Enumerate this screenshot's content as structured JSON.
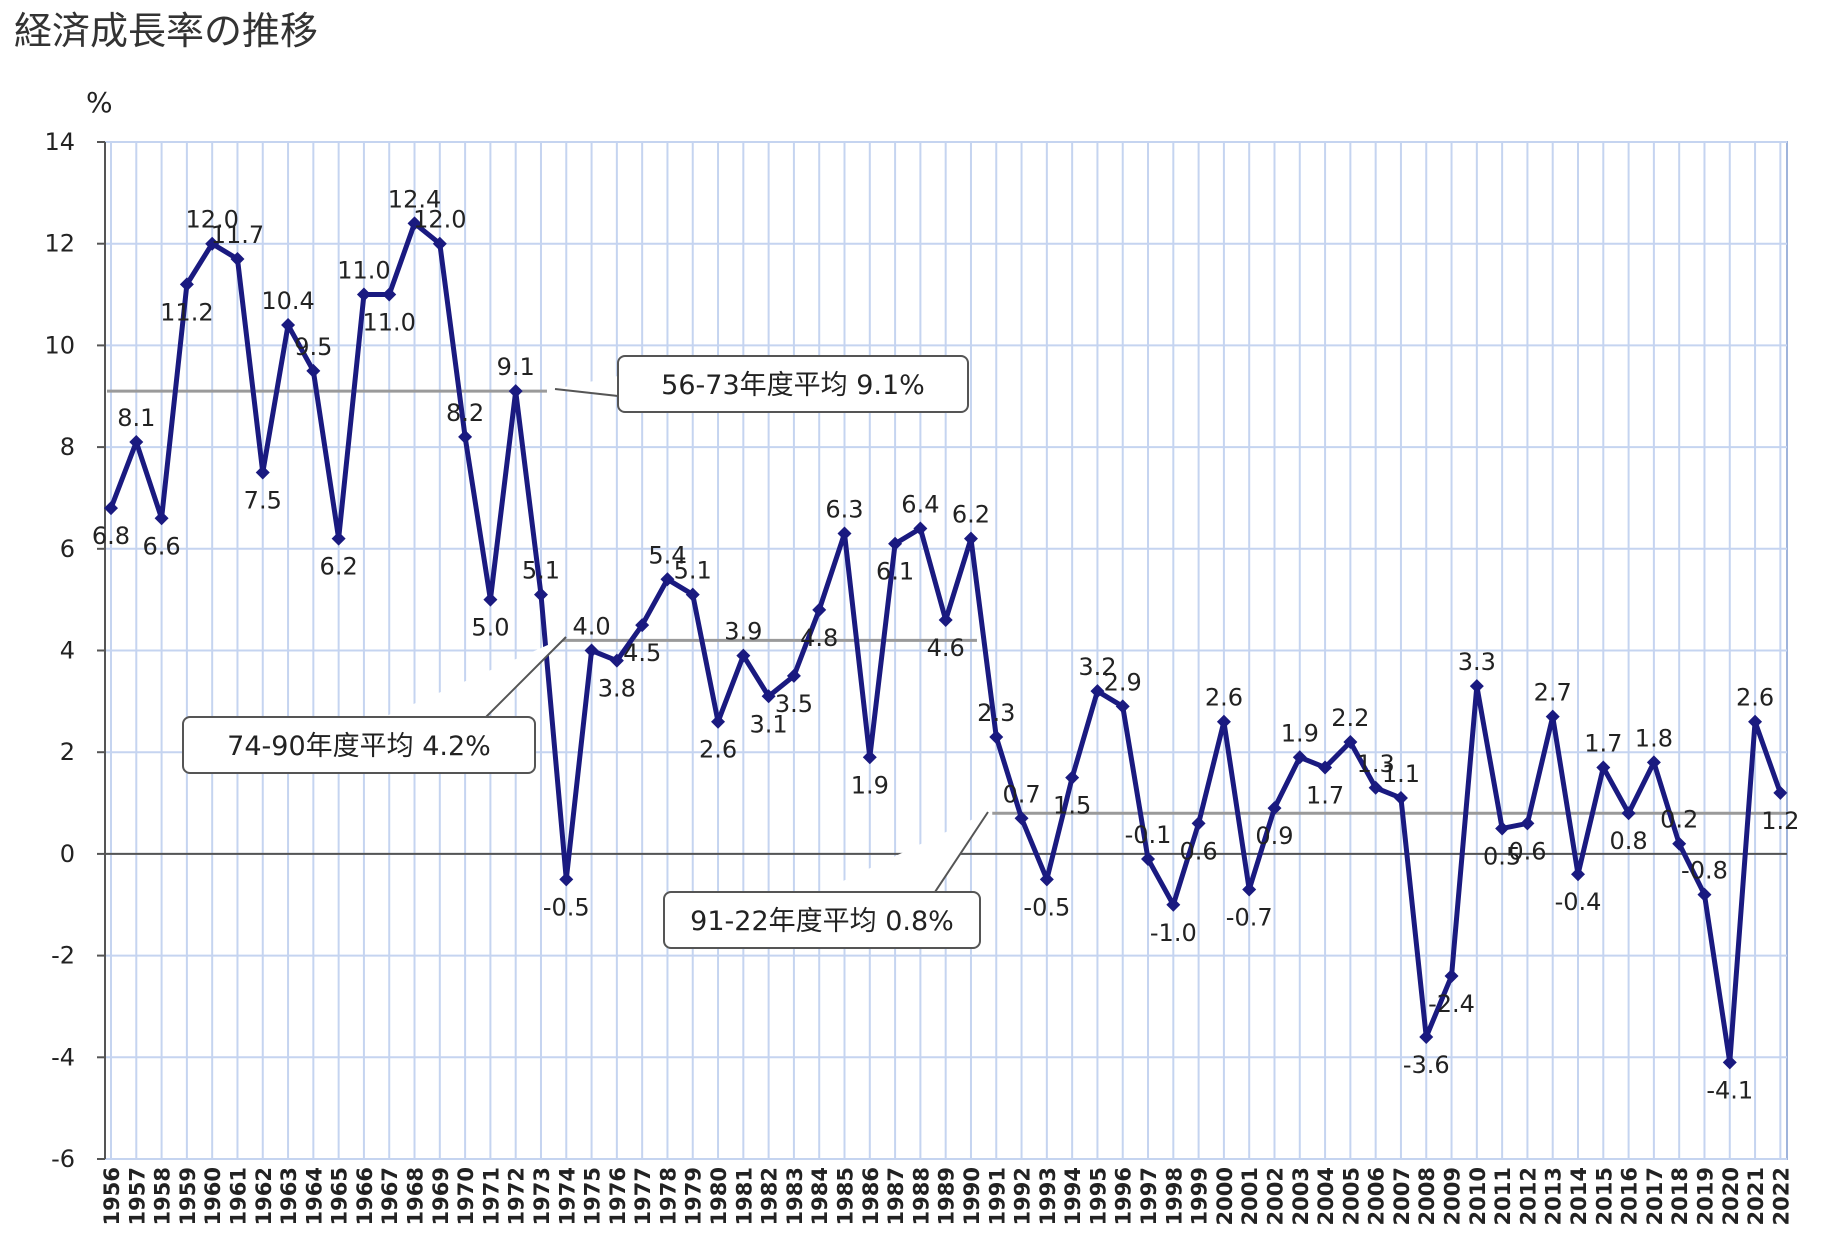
{
  "chart_data": {
    "type": "line",
    "title": "経済成長率の推移",
    "ylabel": "%",
    "xlabel": "",
    "ylim": [
      -6,
      14
    ],
    "yticks": [
      14,
      12,
      10,
      8,
      6,
      4,
      2,
      0,
      -2,
      -4,
      -6
    ],
    "grid": true,
    "colors": {
      "series": "#1a1a80",
      "grid": "#c5d4f0",
      "avg": "#9a9a9a",
      "zero": "#555555"
    },
    "x": [
      "1956",
      "1957",
      "1958",
      "1959",
      "1960",
      "1961",
      "1962",
      "1963",
      "1964",
      "1965",
      "1966",
      "1967",
      "1968",
      "1969",
      "1970",
      "1971",
      "1972",
      "1973",
      "1974",
      "1975",
      "1976",
      "1977",
      "1978",
      "1979",
      "1980",
      "1981",
      "1982",
      "1983",
      "1984",
      "1985",
      "1986",
      "1987",
      "1988",
      "1989",
      "1990",
      "1991",
      "1992",
      "1993",
      "1994",
      "1995",
      "1996",
      "1997",
      "1998",
      "1999",
      "2000",
      "2001",
      "2002",
      "2003",
      "2004",
      "2005",
      "2006",
      "2007",
      "2008",
      "2009",
      "2010",
      "2011",
      "2012",
      "2013",
      "2014",
      "2015",
      "2016",
      "2017",
      "2018",
      "2019",
      "2020",
      "2021",
      "2022"
    ],
    "series": [
      {
        "values": [
          6.8,
          8.1,
          6.6,
          11.2,
          12.0,
          11.7,
          7.5,
          10.4,
          9.5,
          6.2,
          11.0,
          11.0,
          12.4,
          12.0,
          8.2,
          5.0,
          9.1,
          5.1,
          -0.5,
          4.0,
          3.8,
          4.5,
          5.4,
          5.1,
          2.6,
          3.9,
          3.1,
          3.5,
          4.8,
          6.3,
          1.9,
          6.1,
          6.4,
          4.6,
          6.2,
          2.3,
          0.7,
          -0.5,
          1.5,
          3.2,
          2.9,
          -0.1,
          -1.0,
          0.6,
          2.6,
          -0.7,
          0.9,
          1.9,
          1.7,
          2.2,
          1.3,
          1.1,
          -3.6,
          -2.4,
          3.3,
          0.5,
          0.6,
          2.7,
          -0.4,
          1.7,
          0.8,
          1.8,
          0.2,
          -0.8,
          -4.1,
          2.6,
          1.2
        ],
        "labels": [
          "6.8",
          "8.1",
          "6.6",
          "11.2",
          "12.0",
          "11.7",
          "7.5",
          "10.4",
          "9.5",
          "6.2",
          "11.0",
          "11.0",
          "12.4",
          "12.0",
          "8.2",
          "5.0",
          "9.1",
          "5.1",
          "-0.5",
          "4.0",
          "3.8",
          "4.5",
          "5.4",
          "5.1",
          "2.6",
          "3.9",
          "3.1",
          "3.5",
          "4.8",
          "6.3",
          "1.9",
          "6.1",
          "6.4",
          "4.6",
          "6.2",
          "2.3",
          "0.7",
          "-0.5",
          "1.5",
          "3.2",
          "2.9",
          "-0.1",
          "-1.0",
          "0.6",
          "2.6",
          "-0.7",
          "0.9",
          "1.9",
          "1.7",
          "2.2",
          "1.3",
          "1.1",
          "-3.6",
          "-2.4",
          "3.3",
          "0.5",
          "0.6",
          "2.7",
          "-0.4",
          "1.7",
          "0.8",
          "1.8",
          "0.2",
          "-0.8",
          "-4.1",
          "2.6",
          "1.2"
        ]
      }
    ],
    "averages": [
      {
        "label": "56-73年度平均 9.1%",
        "from": "1956",
        "to": "1973",
        "value": 9.1
      },
      {
        "label": "74-90年度平均 4.2%",
        "from": "1974",
        "to": "1990",
        "value": 4.2
      },
      {
        "label": "91-22年度平均 0.8%",
        "from": "1991",
        "to": "2022",
        "value": 0.8
      }
    ]
  }
}
